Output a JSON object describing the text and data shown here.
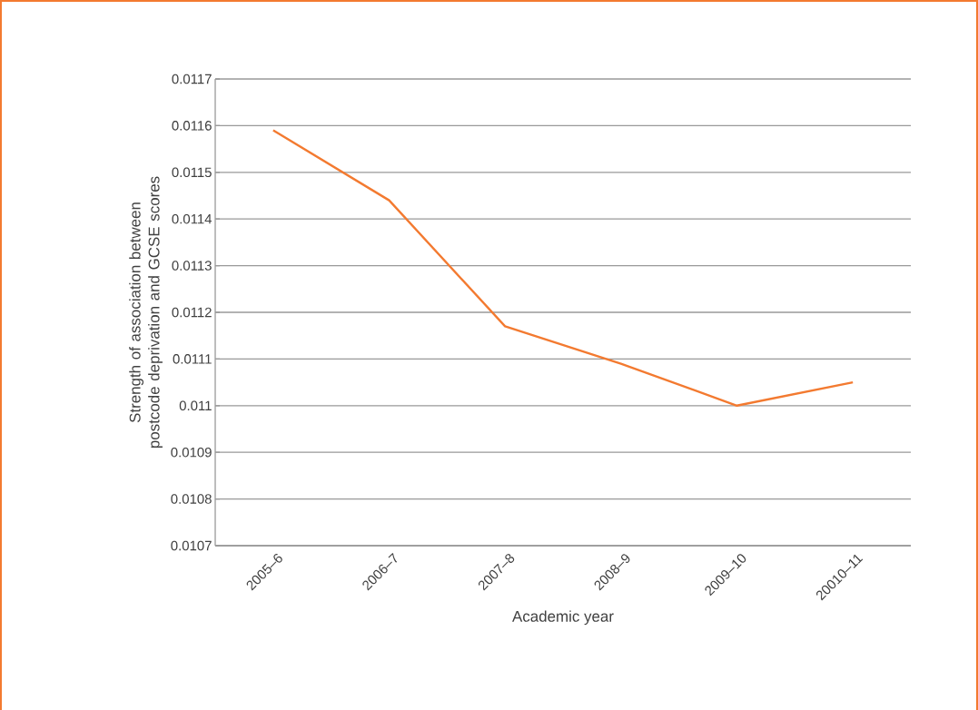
{
  "chart_data": {
    "type": "line",
    "xlabel": "Academic year",
    "ylabel": "Strength of association between postcode deprivation and GCSE scores",
    "categories": [
      "2005–6",
      "2006–7",
      "2007–8",
      "2008–9",
      "2009–10",
      "20010–11"
    ],
    "series": [
      {
        "color": "#f37a30",
        "values": [
          0.01159,
          0.01144,
          0.01117,
          0.01109,
          0.011,
          0.01105
        ]
      }
    ],
    "ylim": [
      0.0107,
      0.0117
    ],
    "yticks": [
      0.0107,
      0.0108,
      0.0109,
      0.011,
      0.0111,
      0.0112,
      0.0113,
      0.0114,
      0.0115,
      0.0116,
      0.0117
    ],
    "grid": "y",
    "marker": "none",
    "line_style": "solid"
  }
}
